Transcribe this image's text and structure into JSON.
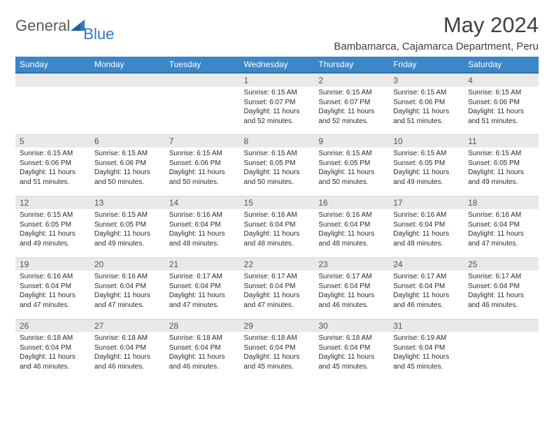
{
  "logo": {
    "part1": "General",
    "part2": "Blue"
  },
  "title": "May 2024",
  "location": "Bambamarca, Cajamarca Department, Peru",
  "colors": {
    "header_bg": "#3b87c8",
    "header_border": "#2d6fa8",
    "daynum_bg": "#e9e9e9",
    "text": "#2b2b2b",
    "logo_gray": "#5a5a5a",
    "logo_blue": "#2a7bbf"
  },
  "weekdays": [
    "Sunday",
    "Monday",
    "Tuesday",
    "Wednesday",
    "Thursday",
    "Friday",
    "Saturday"
  ],
  "weeks": [
    [
      {
        "n": "",
        "lines": []
      },
      {
        "n": "",
        "lines": []
      },
      {
        "n": "",
        "lines": []
      },
      {
        "n": "1",
        "lines": [
          "Sunrise: 6:15 AM",
          "Sunset: 6:07 PM",
          "Daylight: 11 hours",
          "and 52 minutes."
        ]
      },
      {
        "n": "2",
        "lines": [
          "Sunrise: 6:15 AM",
          "Sunset: 6:07 PM",
          "Daylight: 11 hours",
          "and 52 minutes."
        ]
      },
      {
        "n": "3",
        "lines": [
          "Sunrise: 6:15 AM",
          "Sunset: 6:06 PM",
          "Daylight: 11 hours",
          "and 51 minutes."
        ]
      },
      {
        "n": "4",
        "lines": [
          "Sunrise: 6:15 AM",
          "Sunset: 6:06 PM",
          "Daylight: 11 hours",
          "and 51 minutes."
        ]
      }
    ],
    [
      {
        "n": "5",
        "lines": [
          "Sunrise: 6:15 AM",
          "Sunset: 6:06 PM",
          "Daylight: 11 hours",
          "and 51 minutes."
        ]
      },
      {
        "n": "6",
        "lines": [
          "Sunrise: 6:15 AM",
          "Sunset: 6:06 PM",
          "Daylight: 11 hours",
          "and 50 minutes."
        ]
      },
      {
        "n": "7",
        "lines": [
          "Sunrise: 6:15 AM",
          "Sunset: 6:06 PM",
          "Daylight: 11 hours",
          "and 50 minutes."
        ]
      },
      {
        "n": "8",
        "lines": [
          "Sunrise: 6:15 AM",
          "Sunset: 6:05 PM",
          "Daylight: 11 hours",
          "and 50 minutes."
        ]
      },
      {
        "n": "9",
        "lines": [
          "Sunrise: 6:15 AM",
          "Sunset: 6:05 PM",
          "Daylight: 11 hours",
          "and 50 minutes."
        ]
      },
      {
        "n": "10",
        "lines": [
          "Sunrise: 6:15 AM",
          "Sunset: 6:05 PM",
          "Daylight: 11 hours",
          "and 49 minutes."
        ]
      },
      {
        "n": "11",
        "lines": [
          "Sunrise: 6:15 AM",
          "Sunset: 6:05 PM",
          "Daylight: 11 hours",
          "and 49 minutes."
        ]
      }
    ],
    [
      {
        "n": "12",
        "lines": [
          "Sunrise: 6:15 AM",
          "Sunset: 6:05 PM",
          "Daylight: 11 hours",
          "and 49 minutes."
        ]
      },
      {
        "n": "13",
        "lines": [
          "Sunrise: 6:15 AM",
          "Sunset: 6:05 PM",
          "Daylight: 11 hours",
          "and 49 minutes."
        ]
      },
      {
        "n": "14",
        "lines": [
          "Sunrise: 6:16 AM",
          "Sunset: 6:04 PM",
          "Daylight: 11 hours",
          "and 48 minutes."
        ]
      },
      {
        "n": "15",
        "lines": [
          "Sunrise: 6:16 AM",
          "Sunset: 6:04 PM",
          "Daylight: 11 hours",
          "and 48 minutes."
        ]
      },
      {
        "n": "16",
        "lines": [
          "Sunrise: 6:16 AM",
          "Sunset: 6:04 PM",
          "Daylight: 11 hours",
          "and 48 minutes."
        ]
      },
      {
        "n": "17",
        "lines": [
          "Sunrise: 6:16 AM",
          "Sunset: 6:04 PM",
          "Daylight: 11 hours",
          "and 48 minutes."
        ]
      },
      {
        "n": "18",
        "lines": [
          "Sunrise: 6:16 AM",
          "Sunset: 6:04 PM",
          "Daylight: 11 hours",
          "and 47 minutes."
        ]
      }
    ],
    [
      {
        "n": "19",
        "lines": [
          "Sunrise: 6:16 AM",
          "Sunset: 6:04 PM",
          "Daylight: 11 hours",
          "and 47 minutes."
        ]
      },
      {
        "n": "20",
        "lines": [
          "Sunrise: 6:16 AM",
          "Sunset: 6:04 PM",
          "Daylight: 11 hours",
          "and 47 minutes."
        ]
      },
      {
        "n": "21",
        "lines": [
          "Sunrise: 6:17 AM",
          "Sunset: 6:04 PM",
          "Daylight: 11 hours",
          "and 47 minutes."
        ]
      },
      {
        "n": "22",
        "lines": [
          "Sunrise: 6:17 AM",
          "Sunset: 6:04 PM",
          "Daylight: 11 hours",
          "and 47 minutes."
        ]
      },
      {
        "n": "23",
        "lines": [
          "Sunrise: 6:17 AM",
          "Sunset: 6:04 PM",
          "Daylight: 11 hours",
          "and 46 minutes."
        ]
      },
      {
        "n": "24",
        "lines": [
          "Sunrise: 6:17 AM",
          "Sunset: 6:04 PM",
          "Daylight: 11 hours",
          "and 46 minutes."
        ]
      },
      {
        "n": "25",
        "lines": [
          "Sunrise: 6:17 AM",
          "Sunset: 6:04 PM",
          "Daylight: 11 hours",
          "and 46 minutes."
        ]
      }
    ],
    [
      {
        "n": "26",
        "lines": [
          "Sunrise: 6:18 AM",
          "Sunset: 6:04 PM",
          "Daylight: 11 hours",
          "and 46 minutes."
        ]
      },
      {
        "n": "27",
        "lines": [
          "Sunrise: 6:18 AM",
          "Sunset: 6:04 PM",
          "Daylight: 11 hours",
          "and 46 minutes."
        ]
      },
      {
        "n": "28",
        "lines": [
          "Sunrise: 6:18 AM",
          "Sunset: 6:04 PM",
          "Daylight: 11 hours",
          "and 46 minutes."
        ]
      },
      {
        "n": "29",
        "lines": [
          "Sunrise: 6:18 AM",
          "Sunset: 6:04 PM",
          "Daylight: 11 hours",
          "and 45 minutes."
        ]
      },
      {
        "n": "30",
        "lines": [
          "Sunrise: 6:18 AM",
          "Sunset: 6:04 PM",
          "Daylight: 11 hours",
          "and 45 minutes."
        ]
      },
      {
        "n": "31",
        "lines": [
          "Sunrise: 6:19 AM",
          "Sunset: 6:04 PM",
          "Daylight: 11 hours",
          "and 45 minutes."
        ]
      },
      {
        "n": "",
        "lines": []
      }
    ]
  ]
}
